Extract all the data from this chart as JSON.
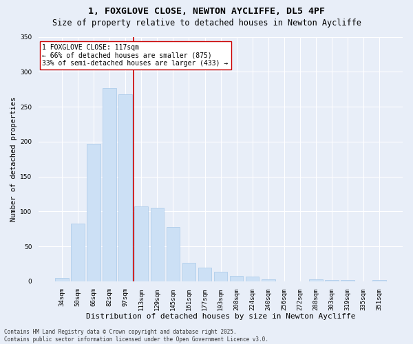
{
  "title1": "1, FOXGLOVE CLOSE, NEWTON AYCLIFFE, DL5 4PF",
  "title2": "Size of property relative to detached houses in Newton Aycliffe",
  "xlabel": "Distribution of detached houses by size in Newton Aycliffe",
  "ylabel": "Number of detached properties",
  "bar_color": "#cce0f5",
  "bar_edge_color": "#a8c8e8",
  "background_color": "#e8eef8",
  "grid_color": "#ffffff",
  "categories": [
    "34sqm",
    "50sqm",
    "66sqm",
    "82sqm",
    "97sqm",
    "113sqm",
    "129sqm",
    "145sqm",
    "161sqm",
    "177sqm",
    "193sqm",
    "208sqm",
    "224sqm",
    "240sqm",
    "256sqm",
    "272sqm",
    "288sqm",
    "303sqm",
    "319sqm",
    "335sqm",
    "351sqm"
  ],
  "bar_heights": [
    5,
    83,
    197,
    277,
    268,
    107,
    105,
    78,
    26,
    20,
    14,
    8,
    7,
    3,
    0,
    0,
    3,
    2,
    2,
    0,
    2
  ],
  "property_bin_index": 5,
  "vline_color": "#cc0000",
  "annotation_text": "1 FOXGLOVE CLOSE: 117sqm\n← 66% of detached houses are smaller (875)\n33% of semi-detached houses are larger (433) →",
  "annotation_box_color": "#ffffff",
  "annotation_box_edge_color": "#cc0000",
  "ylim": [
    0,
    350
  ],
  "yticks": [
    0,
    50,
    100,
    150,
    200,
    250,
    300,
    350
  ],
  "footer_text": "Contains HM Land Registry data © Crown copyright and database right 2025.\nContains public sector information licensed under the Open Government Licence v3.0.",
  "title1_fontsize": 9.5,
  "title2_fontsize": 8.5,
  "xlabel_fontsize": 8,
  "ylabel_fontsize": 7.5,
  "tick_fontsize": 6.5,
  "annotation_fontsize": 7,
  "footer_fontsize": 5.5
}
